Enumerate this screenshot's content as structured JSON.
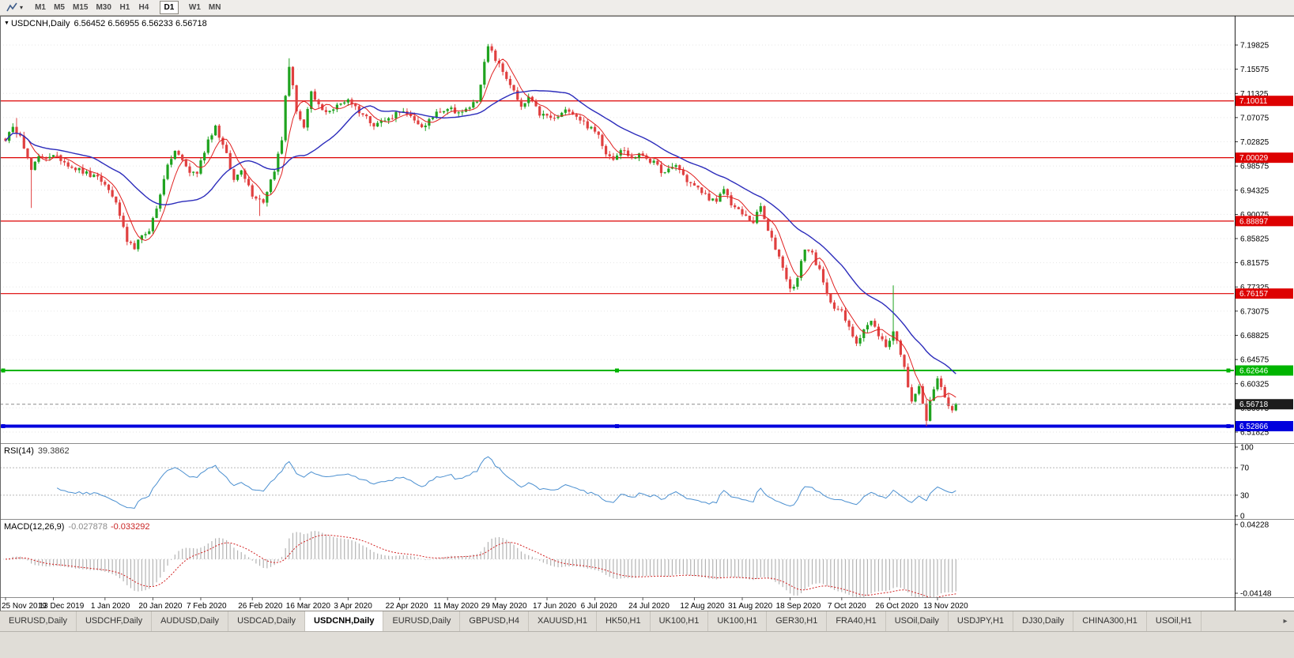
{
  "toolbar": {
    "chart_type_caret": "▾",
    "timeframes": [
      {
        "label": "M1"
      },
      {
        "label": "M5"
      },
      {
        "label": "M15"
      },
      {
        "label": "M30"
      },
      {
        "label": "H1"
      },
      {
        "label": "H4"
      },
      {
        "label": "D1",
        "active": true,
        "gap_before": true
      },
      {
        "label": "W1",
        "gap_before": true
      },
      {
        "label": "MN"
      }
    ]
  },
  "chart": {
    "collapse_icon": "▼",
    "header_symbol": "USDCNH,Daily",
    "header_ohlc": "6.56452 6.56955 6.56233 6.56718"
  },
  "chart_data": {
    "type": "candlestick",
    "symbol": "USDCNH",
    "timeframe": "Daily",
    "ohlc_current": {
      "open": 6.56452,
      "high": 6.56955,
      "low": 6.56233,
      "close": 6.56718
    },
    "current_price": 6.56718,
    "current_price_label": "6.56718",
    "y_ticks": [
      7.19825,
      7.15575,
      7.11325,
      7.07075,
      7.02825,
      6.98575,
      6.94325,
      6.90075,
      6.85825,
      6.81575,
      6.77325,
      6.73075,
      6.68825,
      6.64575,
      6.60325,
      6.56075,
      6.51825
    ],
    "x_labels": [
      "25 Nov 2019",
      "13 Dec 2019",
      "1 Jan 2020",
      "20 Jan 2020",
      "7 Feb 2020",
      "26 Feb 2020",
      "16 Mar 2020",
      "3 Apr 2020",
      "22 Apr 2020",
      "11 May 2020",
      "29 May 2020",
      "17 Jun 2020",
      "6 Jul 2020",
      "24 Jul 2020",
      "12 Aug 2020",
      "31 Aug 2020",
      "18 Sep 2020",
      "7 Oct 2020",
      "26 Oct 2020",
      "13 Nov 2020"
    ],
    "x_label_indices": [
      0,
      13,
      27,
      40,
      53,
      67,
      80,
      93,
      107,
      120,
      133,
      147,
      160,
      173,
      187,
      200,
      213,
      227,
      240,
      253
    ],
    "num_candles": 259,
    "price_anchors": [
      [
        0,
        7.034
      ],
      [
        2,
        7.05
      ],
      [
        4,
        7.044
      ],
      [
        6,
        6.998
      ],
      [
        7,
        6.978
      ],
      [
        9,
        7.0
      ],
      [
        12,
        7.004
      ],
      [
        15,
        6.998
      ],
      [
        18,
        6.985
      ],
      [
        22,
        6.972
      ],
      [
        26,
        6.96
      ],
      [
        29,
        6.935
      ],
      [
        31,
        6.9
      ],
      [
        33,
        6.848
      ],
      [
        35,
        6.844
      ],
      [
        37,
        6.86
      ],
      [
        39,
        6.875
      ],
      [
        41,
        6.91
      ],
      [
        43,
        6.966
      ],
      [
        45,
        7.0
      ],
      [
        46,
        7.012
      ],
      [
        48,
        6.995
      ],
      [
        50,
        6.975
      ],
      [
        52,
        6.974
      ],
      [
        55,
        7.032
      ],
      [
        57,
        7.056
      ],
      [
        60,
        7.004
      ],
      [
        62,
        6.96
      ],
      [
        64,
        6.982
      ],
      [
        67,
        6.936
      ],
      [
        70,
        6.924
      ],
      [
        73,
        6.98
      ],
      [
        75,
        7.03
      ],
      [
        76,
        7.11
      ],
      [
        77,
        7.162
      ],
      [
        79,
        7.085
      ],
      [
        81,
        7.052
      ],
      [
        83,
        7.112
      ],
      [
        86,
        7.082
      ],
      [
        89,
        7.086
      ],
      [
        93,
        7.104
      ],
      [
        96,
        7.082
      ],
      [
        100,
        7.06
      ],
      [
        104,
        7.068
      ],
      [
        107,
        7.084
      ],
      [
        111,
        7.064
      ],
      [
        114,
        7.054
      ],
      [
        117,
        7.082
      ],
      [
        120,
        7.088
      ],
      [
        124,
        7.078
      ],
      [
        128,
        7.102
      ],
      [
        131,
        7.196
      ],
      [
        134,
        7.162
      ],
      [
        137,
        7.13
      ],
      [
        140,
        7.086
      ],
      [
        142,
        7.106
      ],
      [
        145,
        7.077
      ],
      [
        149,
        7.068
      ],
      [
        153,
        7.086
      ],
      [
        156,
        7.068
      ],
      [
        159,
        7.05
      ],
      [
        161,
        7.04
      ],
      [
        163,
        7.01
      ],
      [
        165,
        7.0
      ],
      [
        167,
        7.016
      ],
      [
        170,
        7.0
      ],
      [
        173,
        7.006
      ],
      [
        176,
        6.99
      ],
      [
        179,
        6.972
      ],
      [
        182,
        6.988
      ],
      [
        185,
        6.96
      ],
      [
        188,
        6.945
      ],
      [
        191,
        6.93
      ],
      [
        193,
        6.92
      ],
      [
        195,
        6.946
      ],
      [
        197,
        6.92
      ],
      [
        199,
        6.906
      ],
      [
        201,
        6.896
      ],
      [
        203,
        6.888
      ],
      [
        205,
        6.914
      ],
      [
        207,
        6.87
      ],
      [
        209,
        6.842
      ],
      [
        211,
        6.81
      ],
      [
        213,
        6.768
      ],
      [
        215,
        6.788
      ],
      [
        217,
        6.842
      ],
      [
        219,
        6.832
      ],
      [
        221,
        6.8
      ],
      [
        223,
        6.758
      ],
      [
        225,
        6.74
      ],
      [
        227,
        6.728
      ],
      [
        229,
        6.7
      ],
      [
        231,
        6.676
      ],
      [
        233,
        6.7
      ],
      [
        235,
        6.712
      ],
      [
        237,
        6.69
      ],
      [
        239,
        6.668
      ],
      [
        241,
        6.696
      ],
      [
        243,
        6.658
      ],
      [
        245,
        6.6
      ],
      [
        246,
        6.576
      ],
      [
        247,
        6.588
      ],
      [
        248,
        6.6
      ],
      [
        249,
        6.565
      ],
      [
        250,
        6.538
      ],
      [
        251,
        6.57
      ],
      [
        252,
        6.598
      ],
      [
        253,
        6.608
      ],
      [
        254,
        6.6
      ],
      [
        255,
        6.576
      ],
      [
        256,
        6.565
      ],
      [
        257,
        6.556
      ],
      [
        258,
        6.567
      ]
    ],
    "pin_points": [
      [
        131,
        7.196
      ],
      [
        250,
        6.538
      ],
      [
        258,
        6.56718
      ]
    ],
    "special_wicks": [
      {
        "i": 3,
        "high": 7.07
      },
      {
        "i": 7,
        "low": 6.912
      },
      {
        "i": 69,
        "low": 6.898
      },
      {
        "i": 77,
        "high": 7.175
      },
      {
        "i": 131,
        "high": 7.19825
      },
      {
        "i": 241,
        "high": 6.776
      },
      {
        "i": 250,
        "low": 6.5285
      }
    ],
    "noise_seed": 12345,
    "noise_amplitude": 0.005,
    "wick_amplitude": 0.007,
    "horizontal_lines": [
      {
        "price": 7.10011,
        "label": "7.10011",
        "color": "#dd0000",
        "width": 1.2,
        "selected": false
      },
      {
        "price": 7.00029,
        "label": "7.00029",
        "color": "#dd0000",
        "width": 1.2,
        "selected": false
      },
      {
        "price": 6.88897,
        "label": "6.88897",
        "color": "#dd0000",
        "width": 1.2,
        "selected": false
      },
      {
        "price": 6.76157,
        "label": "6.76157",
        "color": "#dd0000",
        "width": 1.2,
        "selected": false
      },
      {
        "price": 6.62646,
        "label": "6.62646",
        "color": "#00b400",
        "width": 2,
        "selected": true
      },
      {
        "price": 6.52866,
        "label": "6.52866",
        "color": "#0000dd",
        "width": 4,
        "selected": true
      }
    ],
    "moving_averages": [
      {
        "period": 6,
        "color": "#e02020",
        "width": 1
      },
      {
        "period": 24,
        "color": "#2c2cbb",
        "width": 1.4
      }
    ],
    "candle_colors": {
      "up": "#1fa31f",
      "down": "#e04040"
    },
    "indicators": {
      "rsi": {
        "label": "RSI(14)",
        "value": "39.3862",
        "period": 14,
        "color": "#4a8fd0",
        "levels": [
          70,
          30
        ],
        "ticks": [
          100,
          70,
          30,
          0
        ],
        "range": [
          0,
          100
        ]
      },
      "macd": {
        "label": "MACD(12,26,9)",
        "main_value": "-0.027878",
        "signal_value": "-0.033292",
        "fast": 12,
        "slow": 26,
        "signal": 9,
        "histogram_color": "#b3b3b3",
        "signal_color": "#d22020",
        "ticks": [
          0.04228,
          -0.04148
        ],
        "tick_labels": [
          "0.04228",
          "-0.04148"
        ],
        "range": [
          -0.04148,
          0.04228
        ]
      }
    }
  },
  "tabs": {
    "items": [
      {
        "label": "EURUSD,Daily"
      },
      {
        "label": "USDCHF,Daily"
      },
      {
        "label": "AUDUSD,Daily"
      },
      {
        "label": "USDCAD,Daily"
      },
      {
        "label": "USDCNH,Daily",
        "active": true
      },
      {
        "label": "EURUSD,Daily"
      },
      {
        "label": "GBPUSD,H4"
      },
      {
        "label": "XAUUSD,H1"
      },
      {
        "label": "HK50,H1"
      },
      {
        "label": "UK100,H1"
      },
      {
        "label": "UK100,H1"
      },
      {
        "label": "GER30,H1"
      },
      {
        "label": "FRA40,H1"
      },
      {
        "label": "USOil,Daily"
      },
      {
        "label": "USDJPY,H1"
      },
      {
        "label": "DJ30,Daily"
      },
      {
        "label": "CHINA300,H1"
      },
      {
        "label": "USOil,H1"
      }
    ],
    "scroll_right_icon": "▸"
  }
}
